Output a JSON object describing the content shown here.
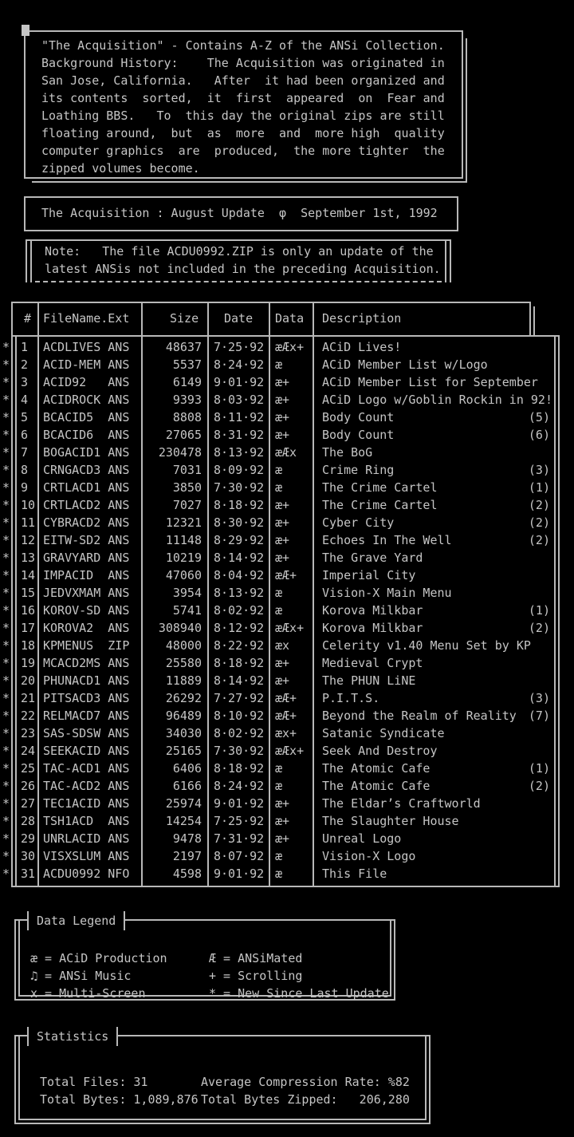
{
  "palette": {
    "background": "#000000",
    "text": "#c5c5c5",
    "line": "#b8b8b8"
  },
  "intro_box": {
    "lines": [
      "\"The Acquisition\" - Contains A-Z of the ANSi Collection.",
      "Background History:    The Acquisition was originated in",
      "San Jose, California.   After  it had been organized and",
      "its contents  sorted,  it  first  appeared  on  Fear and",
      "Loathing BBS.   To  this day the original zips are still",
      "floating around,  but  as  more  and  more high  quality",
      "computer graphics  are  produced,  the more tighter  the",
      "zipped volumes become."
    ]
  },
  "update_banner": {
    "text": "The Acquisition : August Update  φ  September 1st, 1992"
  },
  "note_box": {
    "lines": [
      "Note:   The file ACDU0992.ZIP is only an update of the",
      "latest ANSis not included in the preceding Acquisition."
    ]
  },
  "file_table": {
    "headers": {
      "num": "#",
      "filename": "FileName.Ext",
      "size": "Size",
      "date": "Date",
      "data": "Data",
      "description": "Description"
    },
    "star_marker": "*",
    "rows": [
      {
        "star": "*",
        "num": "1",
        "filename": "ACDLIVES ANS",
        "size": "48637",
        "date": "7·25·92",
        "data": "æÆx+",
        "desc": "ACiD Lives!",
        "count": ""
      },
      {
        "star": "*",
        "num": "2",
        "filename": "ACID-MEM ANS",
        "size": "5537",
        "date": "8·24·92",
        "data": "æ",
        "desc": "ACiD Member List w/Logo",
        "count": ""
      },
      {
        "star": "*",
        "num": "3",
        "filename": "ACID92   ANS",
        "size": "6149",
        "date": "9·01·92",
        "data": "æ+",
        "desc": "ACiD Member List for September",
        "count": ""
      },
      {
        "star": "*",
        "num": "4",
        "filename": "ACIDROCK ANS",
        "size": "9393",
        "date": "8·03·92",
        "data": "æ+",
        "desc": "ACiD Logo w/Goblin Rockin in 92!",
        "count": ""
      },
      {
        "star": "*",
        "num": "5",
        "filename": "BCACID5  ANS",
        "size": "8808",
        "date": "8·11·92",
        "data": "æ+",
        "desc": "Body Count",
        "count": "(5)"
      },
      {
        "star": "*",
        "num": "6",
        "filename": "BCACID6  ANS",
        "size": "27065",
        "date": "8·31·92",
        "data": "æ+",
        "desc": "Body Count",
        "count": "(6)"
      },
      {
        "star": "*",
        "num": "7",
        "filename": "BOGACID1 ANS",
        "size": "230478",
        "date": "8·13·92",
        "data": "æÆx",
        "desc": "The BoG",
        "count": ""
      },
      {
        "star": "*",
        "num": "8",
        "filename": "CRNGACD3 ANS",
        "size": "7031",
        "date": "8·09·92",
        "data": "æ",
        "desc": "Crime Ring",
        "count": "(3)"
      },
      {
        "star": "*",
        "num": "9",
        "filename": "CRTLACD1 ANS",
        "size": "3850",
        "date": "7·30·92",
        "data": "æ",
        "desc": "The Crime Cartel",
        "count": "(1)"
      },
      {
        "star": "*",
        "num": "10",
        "filename": "CRTLACD2 ANS",
        "size": "7027",
        "date": "8·18·92",
        "data": "æ+",
        "desc": "The Crime Cartel",
        "count": "(2)"
      },
      {
        "star": "*",
        "num": "11",
        "filename": "CYBRACD2 ANS",
        "size": "12321",
        "date": "8·30·92",
        "data": "æ+",
        "desc": "Cyber City",
        "count": "(2)"
      },
      {
        "star": "*",
        "num": "12",
        "filename": "EITW-SD2 ANS",
        "size": "11148",
        "date": "8·29·92",
        "data": "æ+",
        "desc": "Echoes In The Well",
        "count": "(2)"
      },
      {
        "star": "*",
        "num": "13",
        "filename": "GRAVYARD ANS",
        "size": "10219",
        "date": "8·14·92",
        "data": "æ+",
        "desc": "The Grave Yard",
        "count": ""
      },
      {
        "star": "*",
        "num": "14",
        "filename": "IMPACID  ANS",
        "size": "47060",
        "date": "8·04·92",
        "data": "æÆ+",
        "desc": "Imperial City",
        "count": ""
      },
      {
        "star": "*",
        "num": "15",
        "filename": "JEDVXMAM ANS",
        "size": "3954",
        "date": "8·13·92",
        "data": "æ",
        "desc": "Vision-X Main Menu",
        "count": ""
      },
      {
        "star": "*",
        "num": "16",
        "filename": "KOROV-SD ANS",
        "size": "5741",
        "date": "8·02·92",
        "data": "æ",
        "desc": "Korova Milkbar",
        "count": "(1)"
      },
      {
        "star": "*",
        "num": "17",
        "filename": "KOROVA2  ANS",
        "size": "308940",
        "date": "8·12·92",
        "data": "æÆx+",
        "desc": "Korova Milkbar",
        "count": "(2)"
      },
      {
        "star": "*",
        "num": "18",
        "filename": "KPMENUS  ZIP",
        "size": "48000",
        "date": "8·22·92",
        "data": "æx",
        "desc": "Celerity v1.40 Menu Set by KP",
        "count": ""
      },
      {
        "star": "*",
        "num": "19",
        "filename": "MCACD2MS ANS",
        "size": "25580",
        "date": "8·18·92",
        "data": "æ+",
        "desc": "Medieval Crypt",
        "count": ""
      },
      {
        "star": "*",
        "num": "20",
        "filename": "PHUNACD1 ANS",
        "size": "11889",
        "date": "8·14·92",
        "data": "æ+",
        "desc": "The PHUN LiNE",
        "count": ""
      },
      {
        "star": "*",
        "num": "21",
        "filename": "PITSACD3 ANS",
        "size": "26292",
        "date": "7·27·92",
        "data": "æÆ+",
        "desc": "P.I.T.S.",
        "count": "(3)"
      },
      {
        "star": "*",
        "num": "22",
        "filename": "RELMACD7 ANS",
        "size": "96489",
        "date": "8·10·92",
        "data": "æÆ+",
        "desc": "Beyond the Realm of Reality",
        "count": "(7)"
      },
      {
        "star": "*",
        "num": "23",
        "filename": "SAS-SDSW ANS",
        "size": "34030",
        "date": "8·02·92",
        "data": "æx+",
        "desc": "Satanic Syndicate",
        "count": ""
      },
      {
        "star": "*",
        "num": "24",
        "filename": "SEEKACID ANS",
        "size": "25165",
        "date": "7·30·92",
        "data": "æÆx+",
        "desc": "Seek And Destroy",
        "count": ""
      },
      {
        "star": "*",
        "num": "25",
        "filename": "TAC-ACD1 ANS",
        "size": "6406",
        "date": "8·18·92",
        "data": "æ",
        "desc": "The Atomic Cafe",
        "count": "(1)"
      },
      {
        "star": "*",
        "num": "26",
        "filename": "TAC-ACD2 ANS",
        "size": "6166",
        "date": "8·24·92",
        "data": "æ",
        "desc": "The Atomic Cafe",
        "count": "(2)"
      },
      {
        "star": "*",
        "num": "27",
        "filename": "TEC1ACID ANS",
        "size": "25974",
        "date": "9·01·92",
        "data": "æ+",
        "desc": "The Eldar’s Craftworld",
        "count": ""
      },
      {
        "star": "*",
        "num": "28",
        "filename": "TSH1ACD  ANS",
        "size": "14254",
        "date": "7·25·92",
        "data": "æ+",
        "desc": "The Slaughter House",
        "count": ""
      },
      {
        "star": "*",
        "num": "29",
        "filename": "UNRLACID ANS",
        "size": "9478",
        "date": "7·31·92",
        "data": "æ+",
        "desc": "Unreal Logo",
        "count": ""
      },
      {
        "star": "*",
        "num": "30",
        "filename": "VISXSLUM ANS",
        "size": "2197",
        "date": "8·07·92",
        "data": "æ",
        "desc": "Vision-X Logo",
        "count": ""
      },
      {
        "star": "*",
        "num": "31",
        "filename": "ACDU0992 NFO",
        "size": "4598",
        "date": "9·01·92",
        "data": "æ",
        "desc": "This File",
        "count": ""
      }
    ]
  },
  "legend_box": {
    "title": "Data Legend",
    "items_left": [
      "æ = ACiD Production",
      "♫ = ANSi Music",
      "x = Multi-Screen"
    ],
    "items_right": [
      "Æ = ANSiMated",
      "+ = Scrolling",
      "* = New Since Last Update"
    ]
  },
  "stats_box": {
    "title": "Statistics",
    "items_left": [
      "Total Files: 31",
      "Total Bytes: 1,089,876"
    ],
    "items_right": [
      "Average Compression Rate: %82",
      "Total Bytes Zipped:   206,280"
    ]
  }
}
